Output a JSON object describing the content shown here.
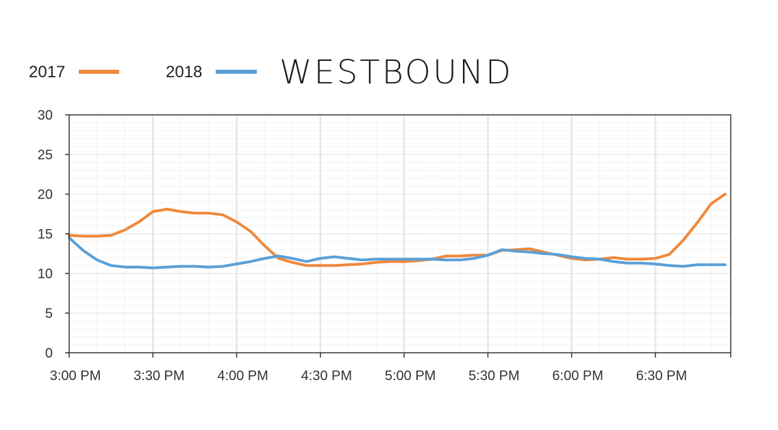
{
  "chart_data": {
    "type": "line",
    "title": "WESTBOUND",
    "xlabel": "",
    "ylabel": "",
    "ylim": [
      0,
      30
    ],
    "yticks": [
      0,
      5,
      10,
      15,
      20,
      25,
      30
    ],
    "x_tick_labels": [
      "3:00 PM",
      "3:30 PM",
      "4:00 PM",
      "4:30 PM",
      "5:00 PM",
      "5:30 PM",
      "6:00 PM",
      "6:30 PM"
    ],
    "x_range_minutes": [
      0,
      237
    ],
    "grid": true,
    "legend_position": "top-left",
    "x_minutes": [
      0,
      5,
      10,
      15,
      20,
      25,
      30,
      35,
      40,
      45,
      50,
      55,
      60,
      65,
      70,
      75,
      80,
      85,
      90,
      95,
      100,
      105,
      110,
      115,
      120,
      125,
      130,
      135,
      140,
      145,
      150,
      155,
      160,
      165,
      170,
      175,
      180,
      185,
      190,
      195,
      200,
      205,
      210,
      215,
      220,
      225,
      230,
      235
    ],
    "series": [
      {
        "name": "2017",
        "color": "#f0883a",
        "values": [
          14.8,
          14.7,
          14.7,
          14.8,
          15.5,
          16.5,
          17.8,
          18.1,
          17.8,
          17.6,
          17.6,
          17.4,
          16.5,
          15.3,
          13.5,
          11.9,
          11.4,
          11.0,
          11.0,
          11.0,
          11.1,
          11.2,
          11.4,
          11.5,
          11.5,
          11.6,
          11.8,
          12.2,
          12.2,
          12.3,
          12.3,
          12.9,
          13.0,
          13.1,
          12.7,
          12.3,
          11.9,
          11.7,
          11.8,
          12.0,
          11.8,
          11.8,
          11.9,
          12.4,
          14.2,
          16.4,
          18.8,
          20.0
        ]
      },
      {
        "name": "2018",
        "color": "#5aa0d8",
        "values": [
          14.5,
          12.9,
          11.7,
          11.0,
          10.8,
          10.8,
          10.7,
          10.8,
          10.9,
          10.9,
          10.8,
          10.9,
          11.2,
          11.5,
          11.9,
          12.2,
          11.9,
          11.5,
          11.9,
          12.1,
          11.9,
          11.7,
          11.8,
          11.8,
          11.8,
          11.8,
          11.8,
          11.7,
          11.7,
          11.9,
          12.3,
          13.0,
          12.8,
          12.7,
          12.5,
          12.4,
          12.1,
          11.9,
          11.8,
          11.5,
          11.3,
          11.3,
          11.2,
          11.0,
          10.9,
          11.1,
          11.1,
          11.1
        ]
      }
    ]
  },
  "legend": [
    {
      "label": "2017",
      "color": "#f0883a"
    },
    {
      "label": "2018",
      "color": "#5aa0d8"
    }
  ],
  "colors": {
    "axis": "#333333",
    "grid_major": "#e6e6e6",
    "grid_minor": "#f2f2f2",
    "background": "#ffffff"
  }
}
